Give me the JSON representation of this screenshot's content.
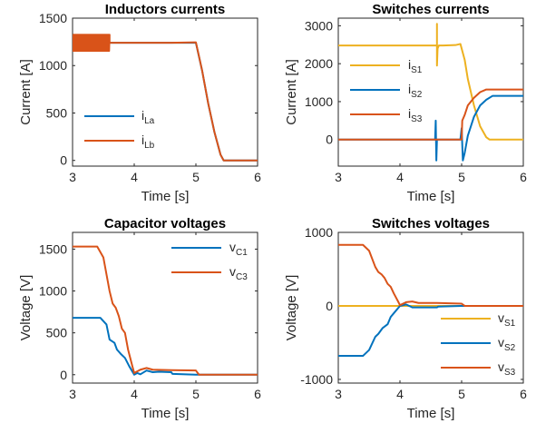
{
  "chart_data": [
    {
      "type": "line",
      "title": "Inductors currents",
      "xlabel": "Time [s]",
      "ylabel": "Current [A]",
      "xlim": [
        3,
        6
      ],
      "ylim": [
        -60,
        1500
      ],
      "xticks": [
        "3",
        "4",
        "5",
        "6"
      ],
      "xtick_values": [
        3,
        4,
        5,
        6
      ],
      "yticks": [
        "0",
        "500",
        "1000",
        "1500"
      ],
      "ytick_values": [
        0,
        500,
        1000,
        1500
      ],
      "grid": false,
      "legend_location": "lower-left",
      "series": [
        {
          "name": "i",
          "sub": "La",
          "color": "#0072BD",
          "x": [
            3,
            4.6,
            5.0,
            5.1,
            5.2,
            5.3,
            5.4,
            5.45,
            6
          ],
          "y": [
            1240,
            1240,
            1240,
            950,
            600,
            300,
            60,
            0,
            0
          ]
        },
        {
          "name": "i",
          "sub": "Lb",
          "color": "#D95319",
          "ripple": {
            "x_end": 3.6,
            "amplitude": 85
          },
          "x": [
            3,
            3.6,
            4.6,
            5.0,
            5.1,
            5.2,
            5.3,
            5.4,
            5.45,
            6
          ],
          "y": [
            1240,
            1240,
            1240,
            1245,
            950,
            600,
            300,
            60,
            0,
            0
          ]
        }
      ]
    },
    {
      "type": "line",
      "title": "Switches currents",
      "xlabel": "Time [s]",
      "ylabel": "Current [A]",
      "xlim": [
        3,
        6
      ],
      "ylim": [
        -700,
        3200
      ],
      "xticks": [
        "3",
        "4",
        "5",
        "6"
      ],
      "xtick_values": [
        3,
        4,
        5,
        6
      ],
      "yticks": [
        "0",
        "1000",
        "2000",
        "3000"
      ],
      "ytick_values": [
        0,
        1000,
        2000,
        3000
      ],
      "grid": false,
      "legend_location": "center-left",
      "series": [
        {
          "name": "i",
          "sub": "S1",
          "color": "#EDB120",
          "x": [
            3,
            4.6,
            4.6,
            4.6,
            4.61,
            4.63,
            4.7,
            4.9,
            4.98,
            5.0,
            5.05,
            5.1,
            5.2,
            5.3,
            5.4,
            5.45,
            6
          ],
          "y": [
            2480,
            2480,
            3050,
            1950,
            2400,
            2480,
            2480,
            2490,
            2520,
            2400,
            2100,
            1600,
            900,
            350,
            60,
            0,
            0
          ]
        },
        {
          "name": "i",
          "sub": "S2",
          "color": "#0072BD",
          "x": [
            3,
            4.57,
            4.58,
            4.59,
            4.6,
            4.62,
            4.98,
            5.0,
            5.02,
            5.05,
            5.1,
            5.2,
            5.3,
            5.4,
            5.5,
            6
          ],
          "y": [
            0,
            0,
            500,
            -550,
            0,
            0,
            0,
            300,
            -550,
            -350,
            100,
            600,
            900,
            1050,
            1150,
            1150
          ]
        },
        {
          "name": "i",
          "sub": "S3",
          "color": "#D95319",
          "x": [
            3,
            4.98,
            5.0,
            5.01,
            5.05,
            5.1,
            5.2,
            5.3,
            5.4,
            5.5,
            6
          ],
          "y": [
            0,
            0,
            0,
            500,
            650,
            900,
            1100,
            1250,
            1320,
            1320,
            1320
          ]
        }
      ]
    },
    {
      "type": "line",
      "title": "Capacitor voltages",
      "xlabel": "Time [s]",
      "ylabel": "Voltage [V]",
      "xlim": [
        3,
        6
      ],
      "ylim": [
        -100,
        1700
      ],
      "xticks": [
        "3",
        "4",
        "5",
        "6"
      ],
      "xtick_values": [
        3,
        4,
        5,
        6
      ],
      "yticks": [
        "0",
        "500",
        "1000",
        "1500"
      ],
      "ytick_values": [
        0,
        500,
        1000,
        1500
      ],
      "grid": false,
      "legend_location": "top-right",
      "series": [
        {
          "name": "v",
          "sub": "C1",
          "color": "#0072BD",
          "x": [
            3,
            3.45,
            3.55,
            3.6,
            3.68,
            3.72,
            3.78,
            3.85,
            3.92,
            4.0,
            4.05,
            4.1,
            4.2,
            4.3,
            4.4,
            4.6,
            4.62,
            5.0,
            6
          ],
          "y": [
            680,
            680,
            600,
            420,
            380,
            300,
            250,
            200,
            100,
            0,
            20,
            5,
            50,
            30,
            35,
            30,
            10,
            0,
            0
          ]
        },
        {
          "name": "v",
          "sub": "C3",
          "color": "#D95319",
          "x": [
            3,
            3.4,
            3.5,
            3.6,
            3.65,
            3.7,
            3.75,
            3.8,
            3.85,
            3.9,
            3.97,
            4.0,
            4.1,
            4.2,
            4.3,
            4.6,
            5.0,
            5.05,
            6
          ],
          "y": [
            1530,
            1530,
            1400,
            1000,
            850,
            800,
            700,
            550,
            500,
            300,
            100,
            20,
            60,
            80,
            60,
            55,
            50,
            0,
            0
          ]
        }
      ]
    },
    {
      "type": "line",
      "title": "Switches voltages",
      "xlabel": "Time [s]",
      "ylabel": "Voltage [V]",
      "xlim": [
        3,
        6
      ],
      "ylim": [
        -1050,
        1000
      ],
      "xticks": [
        "3",
        "4",
        "5",
        "6"
      ],
      "xtick_values": [
        3,
        4,
        5,
        6
      ],
      "yticks": [
        "-1000",
        "0",
        "1000"
      ],
      "ytick_values": [
        -1000,
        0,
        1000
      ],
      "grid": false,
      "legend_location": "lower-right",
      "series": [
        {
          "name": "v",
          "sub": "S1",
          "color": "#EDB120",
          "x": [
            3,
            6
          ],
          "y": [
            0,
            0
          ]
        },
        {
          "name": "v",
          "sub": "S2",
          "color": "#0072BD",
          "x": [
            3,
            3.4,
            3.5,
            3.6,
            3.65,
            3.72,
            3.8,
            3.85,
            3.9,
            4.0,
            4.1,
            4.2,
            4.6,
            4.62,
            5.0,
            6
          ],
          "y": [
            -680,
            -680,
            -600,
            -420,
            -380,
            -300,
            -250,
            -150,
            -100,
            0,
            20,
            -20,
            -20,
            -10,
            0,
            0
          ]
        },
        {
          "name": "v",
          "sub": "S3",
          "color": "#D95319",
          "x": [
            3,
            3.4,
            3.5,
            3.6,
            3.65,
            3.7,
            3.75,
            3.8,
            3.85,
            3.9,
            3.97,
            4.0,
            4.1,
            4.2,
            4.3,
            4.6,
            5.0,
            5.05,
            6
          ],
          "y": [
            830,
            830,
            750,
            530,
            460,
            430,
            380,
            300,
            260,
            170,
            60,
            10,
            50,
            60,
            40,
            40,
            30,
            0,
            0
          ]
        }
      ]
    }
  ]
}
